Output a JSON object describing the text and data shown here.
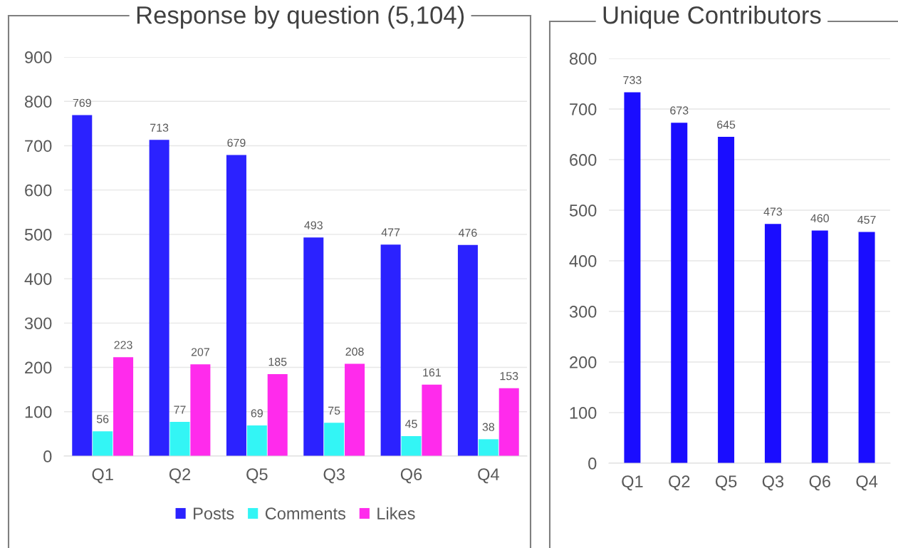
{
  "chart_data": [
    {
      "type": "bar",
      "title": "Response by question (5,104)",
      "categories": [
        "Q1",
        "Q2",
        "Q5",
        "Q3",
        "Q6",
        "Q4"
      ],
      "series": [
        {
          "name": "Posts",
          "color": "#2b22ff",
          "values": [
            769,
            713,
            679,
            493,
            477,
            476
          ]
        },
        {
          "name": "Comments",
          "color": "#33f5f5",
          "values": [
            56,
            77,
            69,
            75,
            45,
            38
          ]
        },
        {
          "name": "Likes",
          "color": "#ff2bec",
          "values": [
            223,
            207,
            185,
            208,
            161,
            153
          ]
        }
      ],
      "ylim": [
        0,
        900
      ],
      "yticks": [
        0,
        100,
        200,
        300,
        400,
        500,
        600,
        700,
        800,
        900
      ],
      "grid": "y",
      "legend": "bottom",
      "data_labels": true
    },
    {
      "type": "bar",
      "title": "Unique Contributors",
      "categories": [
        "Q1",
        "Q2",
        "Q5",
        "Q3",
        "Q6",
        "Q4"
      ],
      "series": [
        {
          "color": "#1a0dff",
          "values": [
            733,
            673,
            645,
            473,
            460,
            457
          ]
        }
      ],
      "ylim": [
        0,
        800
      ],
      "yticks": [
        0,
        100,
        200,
        300,
        400,
        500,
        600,
        700,
        800
      ],
      "grid": "y",
      "data_labels": true
    }
  ]
}
